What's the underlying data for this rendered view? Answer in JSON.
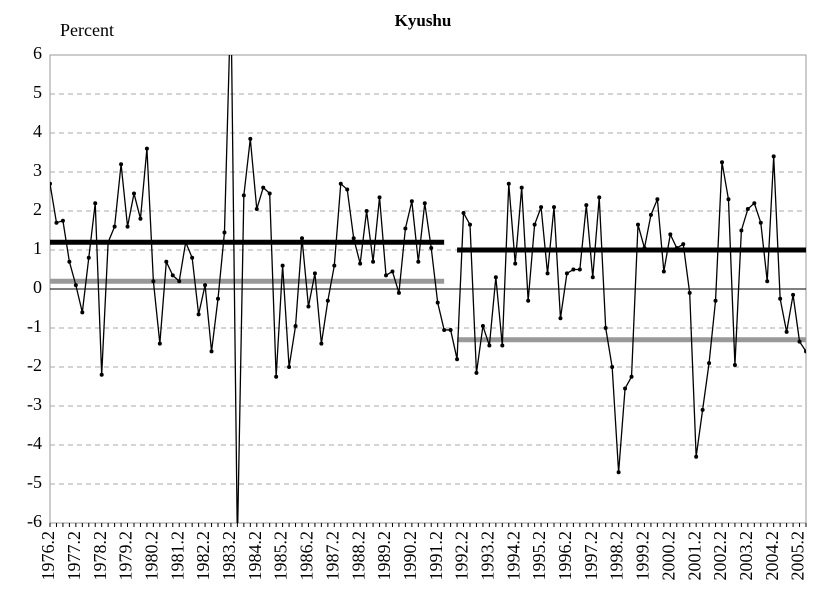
{
  "chart_data": {
    "type": "line",
    "title": "Kyushu",
    "y_label": "Percent",
    "categories": [
      "1976.2",
      null,
      null,
      null,
      "1977.2",
      null,
      null,
      null,
      "1978.2",
      null,
      null,
      null,
      "1979.2",
      null,
      null,
      null,
      "1980.2",
      null,
      null,
      null,
      "1981.2",
      null,
      null,
      null,
      "1982.2",
      null,
      null,
      null,
      "1983.2",
      null,
      null,
      null,
      "1984.2",
      null,
      null,
      null,
      "1985.2",
      null,
      null,
      null,
      "1986.2",
      null,
      null,
      null,
      "1987.2",
      null,
      null,
      null,
      "1988.2",
      null,
      null,
      null,
      "1989.2",
      null,
      null,
      null,
      "1990.2",
      null,
      null,
      null,
      "1991.2",
      null,
      null,
      null,
      "1992.2",
      null,
      null,
      null,
      "1993.2",
      null,
      null,
      null,
      "1994.2",
      null,
      null,
      null,
      "1995.2",
      null,
      null,
      null,
      "1996.2",
      null,
      null,
      null,
      "1997.2",
      null,
      null,
      null,
      "1998.2",
      null,
      null,
      null,
      "1999.2",
      null,
      null,
      null,
      "2000.2",
      null,
      null,
      null,
      "2001.2",
      null,
      null,
      null,
      "2002.2",
      null,
      null,
      null,
      "2003.2",
      null,
      null,
      null,
      "2004.2",
      null,
      null,
      null,
      "2005.2",
      null
    ],
    "series": [
      {
        "color": "#000000",
        "values": [
          2.7,
          1.7,
          1.75,
          0.7,
          0.1,
          -0.6,
          0.8,
          2.2,
          -2.2,
          1.2,
          1.6,
          3.2,
          1.6,
          2.45,
          1.8,
          3.6,
          0.2,
          -1.4,
          0.7,
          0.35,
          0.2,
          1.2,
          0.8,
          -0.65,
          0.1,
          -1.6,
          -0.25,
          1.45,
          7.5,
          -6.5,
          2.4,
          3.85,
          2.05,
          2.6,
          2.45,
          -2.25,
          0.6,
          -2.0,
          -0.95,
          1.3,
          -0.45,
          0.4,
          -1.4,
          -0.3,
          0.6,
          2.7,
          2.55,
          1.3,
          0.65,
          2.0,
          0.7,
          2.35,
          0.35,
          0.45,
          -0.1,
          1.55,
          2.25,
          0.7,
          2.2,
          1.05,
          -0.35,
          -1.05,
          -1.05,
          -1.8,
          1.95,
          1.65,
          -2.15,
          -0.95,
          -1.45,
          0.3,
          -1.45,
          2.7,
          0.65,
          2.6,
          -0.3,
          1.65,
          2.1,
          0.4,
          2.1,
          -0.75,
          0.4,
          0.5,
          0.5,
          2.15,
          0.3,
          2.35,
          -1.0,
          -2.0,
          -4.7,
          -2.55,
          -2.25,
          1.65,
          1.05,
          1.9,
          2.3,
          0.45,
          1.4,
          1.05,
          1.15,
          -0.1,
          -4.3,
          -3.1,
          -1.9,
          -0.3,
          3.25,
          2.3,
          -1.95,
          1.5,
          2.05,
          2.2,
          1.7,
          0.2,
          3.4,
          -0.25,
          -1.1,
          -0.15,
          -1.35,
          -1.6
        ]
      }
    ],
    "segments": [
      {
        "x": [
          0,
          61
        ],
        "value": 1.2,
        "color": "#000000"
      },
      {
        "x": [
          0,
          61
        ],
        "value": 0.2,
        "color": "#999999"
      },
      {
        "x": [
          63,
          117
        ],
        "value": 1.0,
        "color": "#000000"
      },
      {
        "x": [
          63,
          117
        ],
        "value": -1.3,
        "color": "#999999"
      }
    ],
    "ylim": [
      -6,
      6
    ],
    "yticks": [
      -6,
      -5,
      -4,
      -3,
      -2,
      -1,
      0,
      1,
      2,
      3,
      4,
      5,
      6
    ],
    "grid": true
  }
}
